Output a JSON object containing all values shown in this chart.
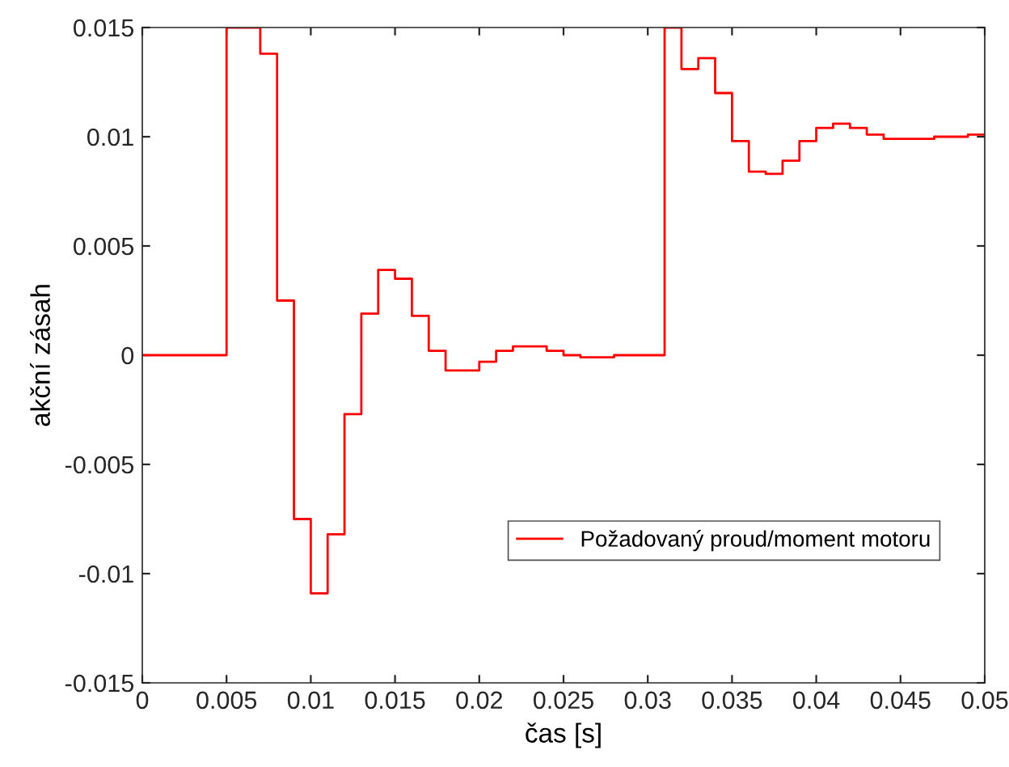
{
  "chart_data": {
    "type": "step",
    "xlabel": "čas [s]",
    "ylabel": "akční zásah",
    "x": [
      0,
      0.005,
      0.006,
      0.007,
      0.008,
      0.009,
      0.01,
      0.011,
      0.012,
      0.013,
      0.014,
      0.015,
      0.016,
      0.017,
      0.018,
      0.019,
      0.02,
      0.021,
      0.022,
      0.023,
      0.024,
      0.025,
      0.026,
      0.027,
      0.028,
      0.029,
      0.03,
      0.031,
      0.032,
      0.033,
      0.034,
      0.035,
      0.036,
      0.037,
      0.038,
      0.039,
      0.04,
      0.041,
      0.042,
      0.043,
      0.044,
      0.045,
      0.046,
      0.047,
      0.048,
      0.049,
      0.05
    ],
    "series": [
      {
        "name": "Požadovaný proud/moment motoru",
        "color": "#ff0000",
        "values": [
          0,
          0.015,
          0.015,
          0.0138,
          0.0025,
          -0.0075,
          -0.0109,
          -0.0082,
          -0.0027,
          0.0019,
          0.0039,
          0.0035,
          0.0018,
          0.0002,
          -0.0007,
          -0.0007,
          -0.0003,
          0.0002,
          0.0004,
          0.0004,
          0.0002,
          0.0,
          -0.0001,
          -0.0001,
          0.0,
          0.0,
          0.0,
          0.015,
          0.0131,
          0.0136,
          0.012,
          0.0098,
          0.0084,
          0.0083,
          0.0089,
          0.0098,
          0.0104,
          0.0106,
          0.0104,
          0.0101,
          0.0099,
          0.0099,
          0.0099,
          0.01,
          0.01,
          0.0101,
          0.0101
        ]
      }
    ],
    "xlim": [
      0,
      0.05
    ],
    "xticks": [
      0,
      0.005,
      0.01,
      0.015,
      0.02,
      0.025,
      0.03,
      0.035,
      0.04,
      0.045,
      0.05
    ],
    "ylim": [
      -0.015,
      0.015
    ],
    "yticks": [
      -0.015,
      -0.01,
      -0.005,
      0,
      0.005,
      0.01,
      0.015
    ],
    "grid": false,
    "legend": "bottom right"
  }
}
